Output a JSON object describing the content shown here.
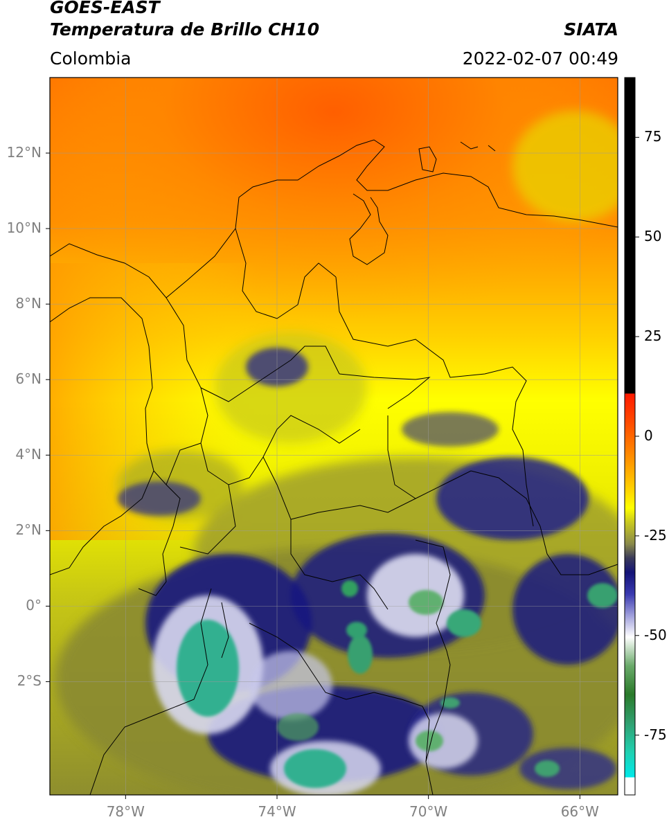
{
  "header": {
    "satellite": "GOES-EAST",
    "product": "Temperatura de Brillo CH10",
    "organization": "SIATA",
    "region": "Colombia",
    "timestamp": "2022-02-07 00:49"
  },
  "axes": {
    "lat_labels": [
      "12°N",
      "10°N",
      "8°N",
      "6°N",
      "4°N",
      "2°N",
      "0°",
      "2°S"
    ],
    "lat_values": [
      12,
      10,
      8,
      6,
      4,
      2,
      0,
      -2
    ],
    "lon_labels": [
      "78°W",
      "74°W",
      "70°W",
      "66°W"
    ],
    "lon_values": [
      -78,
      -74,
      -70,
      -66
    ],
    "lon_range": [
      -80,
      -65
    ],
    "lat_range": [
      -5,
      14
    ]
  },
  "colorbar": {
    "labels": [
      "75",
      "50",
      "25",
      "0",
      "-25",
      "-50",
      "-75"
    ],
    "values": [
      75,
      50,
      25,
      0,
      -25,
      -50,
      -75
    ],
    "range": [
      -90,
      90
    ],
    "colors": {
      "black": "#000000",
      "red": "#ff2000",
      "orange": "#ff9a00",
      "yellow": "#ffff00",
      "olive": "#9c9c2e",
      "gray": "#6a6a5a",
      "navy": "#1a1a8a",
      "blue_white": "#b0b0e0",
      "white": "#ffffff",
      "green": "#3a8a3a",
      "teal": "#20c0a0",
      "cyan": "#00e0e0"
    }
  }
}
